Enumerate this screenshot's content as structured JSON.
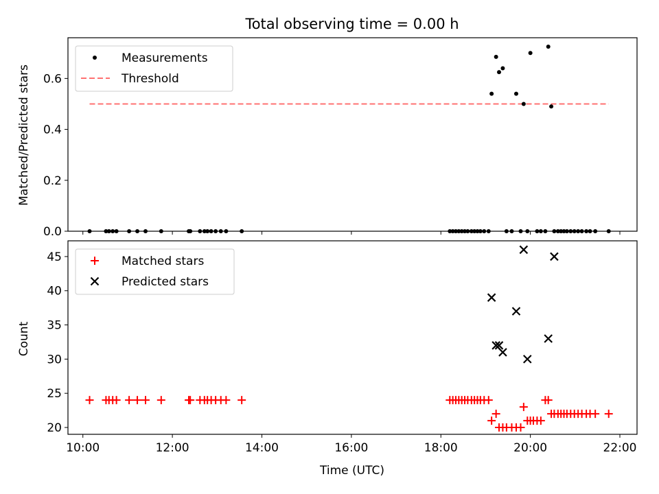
{
  "title": "Total observing time = 0.00 h",
  "xlabel": "Time (UTC)",
  "xticks": [
    "10:00",
    "12:00",
    "14:00",
    "16:00",
    "18:00",
    "20:00",
    "22:00"
  ],
  "colors": {
    "measurement": "#000000",
    "threshold": "#ff7070",
    "matched": "#ff0000",
    "predicted": "#000000"
  },
  "chart_data": [
    {
      "type": "scatter",
      "panel": "top",
      "ylabel": "Matched/Predicted stars",
      "xlim": [
        "09:40",
        "22:23"
      ],
      "ylim": [
        0,
        0.76
      ],
      "yticks": [
        "0.0",
        "0.2",
        "0.4",
        "0.6"
      ],
      "legend_position": "upper-left",
      "legend": [
        "Measurements",
        "Threshold"
      ],
      "series": [
        {
          "name": "Measurements",
          "x": [
            "10:09",
            "10:31",
            "10:35",
            "10:40",
            "10:45",
            "11:02",
            "11:13",
            "11:24",
            "11:45",
            "12:22",
            "12:24",
            "12:37",
            "12:43",
            "12:47",
            "12:52",
            "12:58",
            "13:05",
            "13:12",
            "13:33",
            "18:12",
            "18:16",
            "18:20",
            "18:24",
            "18:28",
            "18:32",
            "18:36",
            "18:41",
            "18:45",
            "18:49",
            "18:53",
            "18:58",
            "19:04",
            "19:08",
            "19:14",
            "19:18",
            "19:23",
            "19:28",
            "19:35",
            "19:41",
            "19:47",
            "19:51",
            "19:56",
            "20:00",
            "20:09",
            "20:14",
            "20:20",
            "20:24",
            "20:28",
            "20:32",
            "20:37",
            "20:41",
            "20:45",
            "20:49",
            "20:54",
            "20:59",
            "21:04",
            "21:09",
            "21:15",
            "21:20",
            "21:27",
            "21:45"
          ],
          "y": [
            0,
            0,
            0,
            0,
            0,
            0,
            0,
            0,
            0,
            0,
            0,
            0,
            0,
            0,
            0,
            0,
            0,
            0,
            0,
            0,
            0,
            0,
            0,
            0,
            0,
            0,
            0,
            0,
            0,
            0,
            0,
            0,
            0.54,
            0.685,
            0.625,
            0.64,
            0,
            0,
            0.54,
            0,
            0.5,
            0,
            0.7,
            0,
            0,
            0,
            0.725,
            0.49,
            0,
            0,
            0,
            0,
            0,
            0,
            0,
            0,
            0,
            0,
            0,
            0,
            0
          ]
        },
        {
          "name": "Threshold",
          "x": [
            "10:09",
            "21:45"
          ],
          "y": [
            0.5,
            0.5
          ]
        }
      ]
    },
    {
      "type": "scatter",
      "panel": "bottom",
      "ylabel": "Count",
      "xlim": [
        "09:40",
        "22:23"
      ],
      "ylim": [
        19,
        47.3
      ],
      "yticks": [
        "20",
        "25",
        "30",
        "35",
        "40",
        "45"
      ],
      "legend_position": "upper-left",
      "legend": [
        "Matched stars",
        "Predicted stars"
      ],
      "series": [
        {
          "name": "Matched stars",
          "x": [
            "10:09",
            "10:31",
            "10:35",
            "10:40",
            "10:45",
            "11:02",
            "11:13",
            "11:24",
            "11:45",
            "12:22",
            "12:24",
            "12:37",
            "12:43",
            "12:47",
            "12:52",
            "12:58",
            "13:05",
            "13:12",
            "13:33",
            "18:12",
            "18:16",
            "18:20",
            "18:24",
            "18:28",
            "18:32",
            "18:36",
            "18:41",
            "18:45",
            "18:49",
            "18:53",
            "18:58",
            "19:04",
            "19:08",
            "19:14",
            "19:18",
            "19:23",
            "19:28",
            "19:35",
            "19:41",
            "19:47",
            "19:51",
            "19:56",
            "20:00",
            "20:04",
            "20:09",
            "20:14",
            "20:20",
            "20:24",
            "20:28",
            "20:32",
            "20:37",
            "20:41",
            "20:45",
            "20:49",
            "20:54",
            "20:59",
            "21:04",
            "21:09",
            "21:15",
            "21:20",
            "21:27",
            "21:45"
          ],
          "y": [
            24,
            24,
            24,
            24,
            24,
            24,
            24,
            24,
            24,
            24,
            24,
            24,
            24,
            24,
            24,
            24,
            24,
            24,
            24,
            24,
            24,
            24,
            24,
            24,
            24,
            24,
            24,
            24,
            24,
            24,
            24,
            24,
            21,
            22,
            20,
            20,
            20,
            20,
            20,
            20,
            23,
            21,
            21,
            21,
            21,
            21,
            24,
            24,
            22,
            22,
            22,
            22,
            22,
            22,
            22,
            22,
            22,
            22,
            22,
            22,
            22,
            22
          ]
        },
        {
          "name": "Predicted stars",
          "x": [
            "19:08",
            "19:14",
            "19:18",
            "19:23",
            "19:41",
            "19:51",
            "19:56",
            "20:24",
            "20:32"
          ],
          "y": [
            39,
            32,
            32,
            31,
            37,
            46,
            30,
            33,
            45
          ]
        }
      ]
    }
  ]
}
